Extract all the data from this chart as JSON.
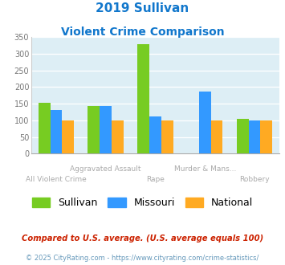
{
  "title_line1": "2019 Sullivan",
  "title_line2": "Violent Crime Comparison",
  "categories": [
    "All Violent Crime",
    "Aggravated Assault",
    "Rape",
    "Murder & Mans...",
    "Robbery"
  ],
  "sullivan": [
    152,
    142,
    328,
    0,
    105
  ],
  "missouri": [
    130,
    143,
    112,
    186,
    99
  ],
  "national": [
    100,
    100,
    100,
    100,
    100
  ],
  "sullivan_color": "#77cc22",
  "missouri_color": "#3399ff",
  "national_color": "#ffaa22",
  "ylim": [
    0,
    350
  ],
  "yticks": [
    0,
    50,
    100,
    150,
    200,
    250,
    300,
    350
  ],
  "plot_bg": "#ddeef5",
  "title_color": "#1177cc",
  "legend_labels": [
    "Sullivan",
    "Missouri",
    "National"
  ],
  "footnote1": "Compared to U.S. average. (U.S. average equals 100)",
  "footnote2": "© 2025 CityRating.com - https://www.cityrating.com/crime-statistics/",
  "footnote1_color": "#cc2200",
  "footnote2_color": "#6699bb",
  "row1_indices": [
    1,
    3
  ],
  "row2_indices": [
    0,
    2,
    4
  ]
}
